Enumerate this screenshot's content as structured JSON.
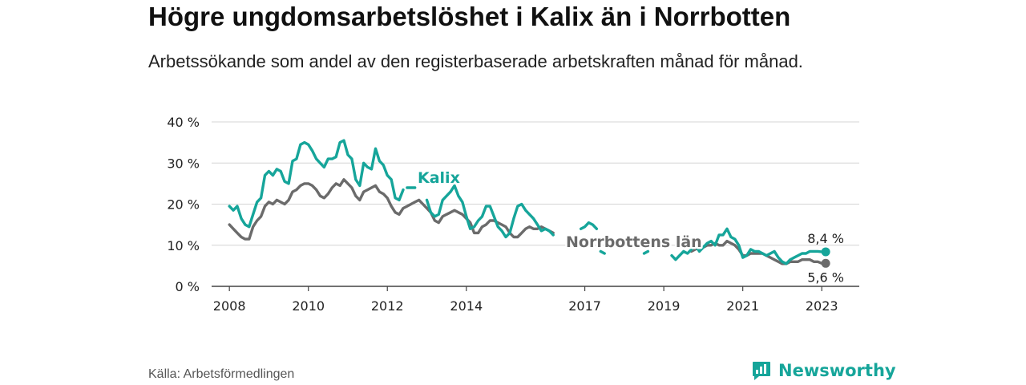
{
  "header": {
    "title": "Högre ungdomsarbetslöshet i Kalix än i Norrbotten",
    "subtitle": "Arbetssökande som andel av den registerbaserade arbetskraften månad för månad."
  },
  "footer": {
    "source": "Källa: Arbetsförmedlingen",
    "brand": "Newsworthy",
    "brand_icon": "newsworthy-logo-icon"
  },
  "colors": {
    "kalix": "#16a59a",
    "norrbotten": "#6b6b6b",
    "grid": "#d4d4d4",
    "axis": "#444444"
  },
  "chart_data": {
    "type": "line",
    "title": "Högre ungdomsarbetslöshet i Kalix än i Norrbotten",
    "xlabel": "",
    "ylabel": "",
    "xlim": [
      2007.55,
      2023.95
    ],
    "ylim": [
      0,
      40
    ],
    "y_ticks": [
      0,
      10,
      20,
      30,
      40
    ],
    "y_tick_labels": [
      "0 %",
      "10 %",
      "20 %",
      "30 %",
      "40 %"
    ],
    "x_ticks": [
      2008,
      2010,
      2012,
      2014,
      2017,
      2019,
      2021,
      2023
    ],
    "x_tick_labels": [
      "2008",
      "2010",
      "2012",
      "2014",
      "2017",
      "2019",
      "2021",
      "2023"
    ],
    "grid": true,
    "legend": "inline labels",
    "series": [
      {
        "name": "Kalix",
        "end_label": "8,4 %",
        "segments": [
          {
            "x": [
              2008.0,
              2008.1,
              2008.2,
              2008.3,
              2008.4,
              2008.5,
              2008.6,
              2008.7,
              2008.8,
              2008.9,
              2009.0,
              2009.1,
              2009.2,
              2009.3,
              2009.4,
              2009.5,
              2009.6,
              2009.7,
              2009.8,
              2009.9,
              2010.0,
              2010.1,
              2010.2,
              2010.3,
              2010.4,
              2010.5,
              2010.6,
              2010.7,
              2010.8,
              2010.9,
              2011.0,
              2011.1,
              2011.2,
              2011.3,
              2011.4,
              2011.5,
              2011.6,
              2011.7,
              2011.8,
              2011.9,
              2012.0,
              2012.1,
              2012.2,
              2012.3,
              2012.4
            ],
            "y": [
              19.5,
              18.5,
              19.5,
              16.5,
              15.0,
              14.5,
              17.5,
              20.5,
              21.5,
              27.0,
              28.0,
              27.0,
              28.5,
              28.0,
              25.5,
              25.0,
              30.5,
              31.0,
              34.5,
              35.0,
              34.5,
              33.0,
              31.0,
              30.0,
              29.0,
              31.0,
              31.0,
              31.5,
              35.0,
              35.5,
              32.0,
              31.0,
              26.0,
              24.5,
              30.0,
              29.0,
              28.5,
              33.5,
              30.5,
              29.5,
              27.0,
              26.0,
              21.5,
              21.0,
              23.5
            ]
          },
          {
            "x": [
              2012.5,
              2012.6,
              2012.7
            ],
            "y": [
              24.0,
              24.0,
              24.0
            ]
          },
          {
            "x": [
              2013.0,
              2013.1,
              2013.2,
              2013.3,
              2013.4,
              2013.5,
              2013.6,
              2013.7,
              2013.8,
              2013.9,
              2014.0,
              2014.1,
              2014.2,
              2014.3,
              2014.4,
              2014.5,
              2014.6,
              2014.7,
              2014.8,
              2014.9,
              2015.0,
              2015.1,
              2015.2,
              2015.3,
              2015.4,
              2015.5,
              2015.6,
              2015.7,
              2015.8,
              2015.9,
              2016.0,
              2016.1,
              2016.2
            ],
            "y": [
              21.0,
              18.0,
              17.0,
              17.5,
              21.0,
              22.0,
              23.0,
              24.5,
              22.0,
              20.5,
              17.0,
              14.0,
              14.5,
              16.0,
              17.0,
              19.5,
              19.5,
              17.0,
              14.5,
              13.5,
              12.0,
              13.0,
              16.5,
              19.5,
              20.0,
              18.5,
              17.5,
              16.5,
              15.0,
              13.5,
              14.0,
              13.5,
              12.5
            ]
          },
          {
            "x": [
              2016.9,
              2017.0,
              2017.1,
              2017.2,
              2017.3
            ],
            "y": [
              14.0,
              14.5,
              15.5,
              15.0,
              14.0
            ]
          },
          {
            "x": [
              2017.4,
              2017.5
            ],
            "y": [
              8.5,
              8.0
            ]
          },
          {
            "x": [
              2018.5,
              2018.6
            ],
            "y": [
              8.0,
              8.5
            ]
          },
          {
            "x": [
              2019.2,
              2019.3,
              2019.4,
              2019.5,
              2019.6,
              2019.7,
              2019.8,
              2019.9,
              2020.0,
              2020.1,
              2020.2,
              2020.3,
              2020.4,
              2020.5,
              2020.6,
              2020.7,
              2020.8,
              2020.9,
              2021.0,
              2021.1,
              2021.2,
              2021.3,
              2021.4,
              2021.5,
              2021.6,
              2021.7,
              2021.8,
              2021.9,
              2022.0,
              2022.1,
              2022.2,
              2022.3,
              2022.4,
              2022.5,
              2022.6,
              2022.7,
              2022.8,
              2022.9,
              2023.0,
              2023.1
            ],
            "y": [
              7.5,
              6.5,
              7.5,
              8.5,
              8.0,
              9.0,
              10.0,
              8.5,
              9.5,
              10.5,
              11.0,
              10.0,
              12.5,
              12.5,
              14.0,
              12.0,
              11.5,
              10.0,
              7.0,
              7.5,
              9.0,
              8.5,
              8.5,
              8.0,
              7.5,
              8.0,
              8.5,
              7.0,
              6.0,
              5.5,
              6.5,
              7.0,
              7.5,
              8.0,
              8.0,
              8.5,
              8.5,
              8.5,
              8.4,
              8.4
            ]
          }
        ]
      },
      {
        "name": "Norrbottens län",
        "end_label": "5,6 %",
        "segments": [
          {
            "x": [
              2008.0,
              2008.1,
              2008.2,
              2008.3,
              2008.4,
              2008.5,
              2008.6,
              2008.7,
              2008.8,
              2008.9,
              2009.0,
              2009.1,
              2009.2,
              2009.3,
              2009.4,
              2009.5,
              2009.6,
              2009.7,
              2009.8,
              2009.9,
              2010.0,
              2010.1,
              2010.2,
              2010.3,
              2010.4,
              2010.5,
              2010.6,
              2010.7,
              2010.8,
              2010.9,
              2011.0,
              2011.1,
              2011.2,
              2011.3,
              2011.4,
              2011.5,
              2011.6,
              2011.7,
              2011.8,
              2011.9,
              2012.0,
              2012.1,
              2012.2,
              2012.3,
              2012.4,
              2012.5,
              2012.6,
              2012.7,
              2012.8,
              2012.9,
              2013.0,
              2013.1,
              2013.2,
              2013.3,
              2013.4,
              2013.5,
              2013.6,
              2013.7,
              2013.8,
              2013.9,
              2014.0,
              2014.1,
              2014.2,
              2014.3,
              2014.4,
              2014.5,
              2014.6,
              2014.7,
              2014.8,
              2014.9,
              2015.0,
              2015.1,
              2015.2,
              2015.3,
              2015.4,
              2015.5,
              2015.6,
              2015.7,
              2015.8,
              2015.9,
              2016.0,
              2016.1,
              2016.2
            ],
            "y": [
              15.0,
              14.0,
              13.0,
              12.0,
              11.5,
              11.5,
              14.5,
              16.0,
              17.0,
              19.5,
              20.5,
              20.0,
              21.0,
              20.5,
              20.0,
              21.0,
              23.0,
              23.5,
              24.5,
              25.0,
              25.0,
              24.5,
              23.5,
              22.0,
              21.5,
              22.5,
              24.0,
              25.0,
              24.5,
              26.0,
              25.0,
              24.0,
              22.0,
              21.0,
              23.0,
              23.5,
              24.0,
              24.5,
              23.0,
              22.5,
              21.5,
              19.5,
              18.0,
              17.5,
              19.0,
              19.5,
              20.0,
              20.5,
              21.0,
              20.0,
              19.0,
              18.0,
              16.0,
              15.5,
              17.0,
              17.5,
              18.0,
              18.5,
              18.0,
              17.5,
              16.5,
              15.5,
              13.0,
              13.0,
              14.5,
              15.0,
              16.0,
              16.0,
              15.5,
              15.0,
              14.5,
              13.0,
              12.0,
              12.0,
              13.0,
              14.0,
              14.5,
              14.0,
              14.0,
              14.5,
              14.0,
              13.5,
              13.0
            ]
          },
          {
            "x": [
              2019.7,
              2019.8,
              2019.9,
              2020.0,
              2020.1,
              2020.2,
              2020.3,
              2020.4,
              2020.5,
              2020.6,
              2020.7,
              2020.8,
              2020.9,
              2021.0,
              2021.1,
              2021.2,
              2021.3,
              2021.4,
              2021.5,
              2021.6,
              2021.7,
              2021.8,
              2021.9,
              2022.0,
              2022.1,
              2022.2,
              2022.3,
              2022.4,
              2022.5,
              2022.6,
              2022.7,
              2022.8,
              2022.9,
              2023.0,
              2023.1
            ],
            "y": [
              8.5,
              9.0,
              9.5,
              9.5,
              10.0,
              10.0,
              10.5,
              10.0,
              10.0,
              11.0,
              10.5,
              10.0,
              9.0,
              7.5,
              7.5,
              8.0,
              8.0,
              8.0,
              8.0,
              7.5,
              7.0,
              6.5,
              6.0,
              5.5,
              5.5,
              6.0,
              6.0,
              6.0,
              6.5,
              6.5,
              6.5,
              6.0,
              6.0,
              5.6,
              5.6
            ]
          }
        ]
      }
    ]
  }
}
